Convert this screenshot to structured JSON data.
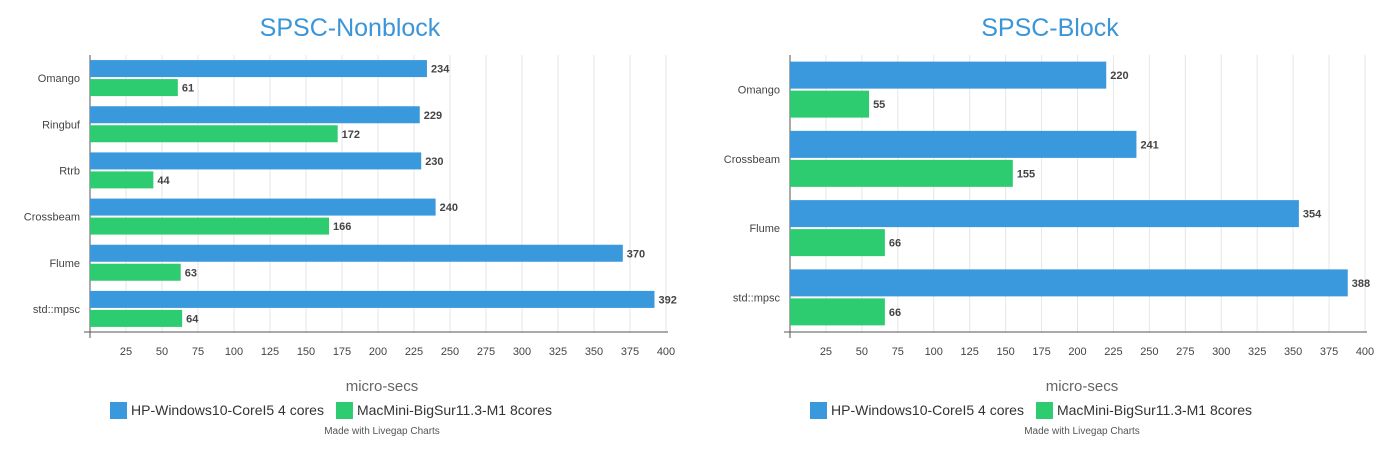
{
  "colors": {
    "hp": "#3a98dc",
    "mac": "#2ecc71",
    "grid": "#e6e6e6",
    "axis": "#555555",
    "title": "#3a95d9"
  },
  "chart_data": [
    {
      "type": "bar",
      "orientation": "horizontal",
      "title": "SPSC-Nonblock",
      "xlabel": "micro-secs",
      "xlim": [
        0,
        400
      ],
      "xticks": [
        25,
        50,
        75,
        100,
        125,
        150,
        175,
        200,
        225,
        250,
        275,
        300,
        325,
        350,
        375,
        400
      ],
      "categories": [
        "Omango",
        "Ringbuf",
        "Rtrb",
        "Crossbeam",
        "Flume",
        "std::mpsc"
      ],
      "series": [
        {
          "name": "HP-Windows10-CoreI5 4 cores",
          "values": [
            234,
            229,
            230,
            240,
            370,
            392
          ]
        },
        {
          "name": "MacMini-BigSur11.3-M1 8cores",
          "values": [
            61,
            172,
            44,
            166,
            63,
            64
          ]
        }
      ],
      "legend": "bottom",
      "credit": "Made with Livegap Charts",
      "grid": true
    },
    {
      "type": "bar",
      "orientation": "horizontal",
      "title": "SPSC-Block",
      "xlabel": "micro-secs",
      "xlim": [
        0,
        400
      ],
      "xticks": [
        25,
        50,
        75,
        100,
        125,
        150,
        175,
        200,
        225,
        250,
        275,
        300,
        325,
        350,
        375,
        400
      ],
      "categories": [
        "Omango",
        "Crossbeam",
        "Flume",
        "std::mpsc"
      ],
      "series": [
        {
          "name": "HP-Windows10-CoreI5 4 cores",
          "values": [
            220,
            241,
            354,
            388
          ]
        },
        {
          "name": "MacMini-BigSur11.3-M1 8cores",
          "values": [
            55,
            155,
            66,
            66
          ]
        }
      ],
      "legend": "bottom",
      "credit": "Made with Livegap Charts",
      "grid": true
    }
  ]
}
